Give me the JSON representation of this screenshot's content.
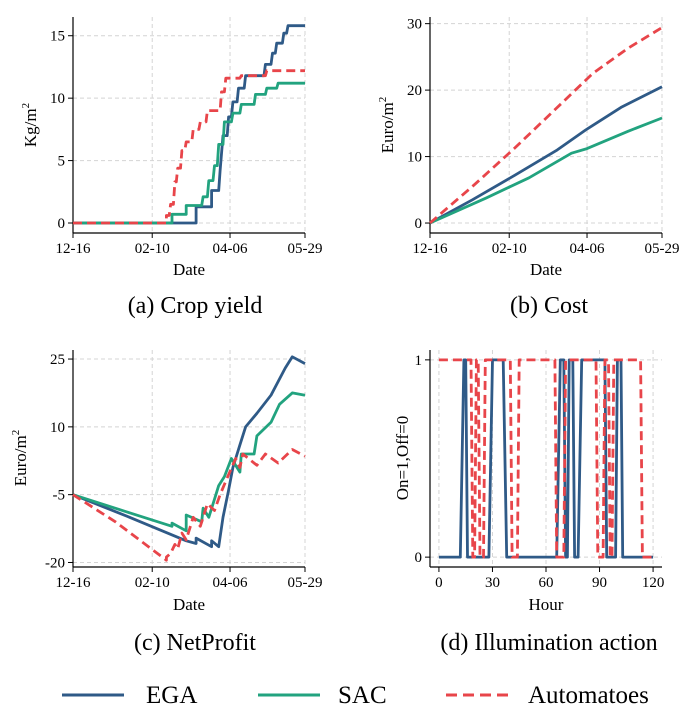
{
  "colors": {
    "EGA": "#2f5a87",
    "SAC": "#22a37f",
    "Automatoes": "#e8454a",
    "grid": "#d4d4d4"
  },
  "legend": [
    {
      "name": "EGA",
      "color": "#2f5a87",
      "dashed": false
    },
    {
      "name": "SAC",
      "color": "#22a37f",
      "dashed": false
    },
    {
      "name": "Automatoes",
      "color": "#e8454a",
      "dashed": true
    }
  ],
  "chart_data": [
    {
      "type": "line",
      "caption": "(a) Crop yield",
      "xlabel": "Date",
      "ylabel": "Kg/m",
      "ylabel_sup": "2",
      "x_tick_labels": [
        "12-16",
        "02-10",
        "04-06",
        "05-29"
      ],
      "x_tick_values": [
        0,
        56,
        111,
        164
      ],
      "xlim": [
        0,
        164
      ],
      "ylim": [
        -0.8,
        16.5
      ],
      "y_ticks": [
        0,
        5,
        10,
        15
      ],
      "series": [
        {
          "name": "EGA",
          "points": [
            [
              0,
              0
            ],
            [
              87,
              0
            ],
            [
              87,
              1.3
            ],
            [
              98,
              1.3
            ],
            [
              98,
              2.6
            ],
            [
              103,
              2.6
            ],
            [
              104,
              4.2
            ],
            [
              106,
              7.0
            ],
            [
              109,
              7.0
            ],
            [
              110,
              8.5
            ],
            [
              112,
              8.5
            ],
            [
              113,
              9.7
            ],
            [
              116,
              9.7
            ],
            [
              117,
              10.8
            ],
            [
              121,
              10.8
            ],
            [
              122,
              11.8
            ],
            [
              135,
              11.8
            ],
            [
              136,
              12.7
            ],
            [
              140,
              12.7
            ],
            [
              141,
              13.6
            ],
            [
              143,
              13.6
            ],
            [
              144,
              14.4
            ],
            [
              148,
              14.4
            ],
            [
              149,
              15.2
            ],
            [
              151,
              15.2
            ],
            [
              152,
              15.8
            ],
            [
              164,
              15.8
            ]
          ]
        },
        {
          "name": "SAC",
          "points": [
            [
              0,
              0
            ],
            [
              70,
              0
            ],
            [
              70,
              0.7
            ],
            [
              80,
              0.7
            ],
            [
              80,
              1.4
            ],
            [
              91,
              1.4
            ],
            [
              92,
              2.1
            ],
            [
              95,
              2.1
            ],
            [
              96,
              3.4
            ],
            [
              99,
              3.4
            ],
            [
              100,
              4.6
            ],
            [
              102,
              4.6
            ],
            [
              103,
              6.3
            ],
            [
              106,
              6.3
            ],
            [
              107,
              8.1
            ],
            [
              112,
              8.1
            ],
            [
              113,
              8.8
            ],
            [
              118,
              8.8
            ],
            [
              119,
              9.5
            ],
            [
              128,
              9.5
            ],
            [
              129,
              10.3
            ],
            [
              136,
              10.3
            ],
            [
              137,
              10.8
            ],
            [
              144,
              10.8
            ],
            [
              145,
              11.2
            ],
            [
              164,
              11.2
            ]
          ]
        },
        {
          "name": "Automatoes",
          "points": [
            [
              0,
              0
            ],
            [
              66,
              0
            ],
            [
              66,
              0.6
            ],
            [
              68,
              0.6
            ],
            [
              69,
              1.5
            ],
            [
              71,
              1.5
            ],
            [
              72,
              3.3
            ],
            [
              73,
              3.3
            ],
            [
              74,
              4.4
            ],
            [
              76,
              4.4
            ],
            [
              77,
              5.8
            ],
            [
              79,
              5.8
            ],
            [
              80,
              6.5
            ],
            [
              84,
              6.5
            ],
            [
              85,
              7.5
            ],
            [
              89,
              7.5
            ],
            [
              90,
              8.1
            ],
            [
              94,
              8.1
            ],
            [
              95,
              9.0
            ],
            [
              104,
              9.0
            ],
            [
              105,
              10.5
            ],
            [
              107,
              10.5
            ],
            [
              108,
              11.6
            ],
            [
              118,
              11.6
            ],
            [
              119,
              11.8
            ],
            [
              136,
              11.8
            ],
            [
              137,
              12.2
            ],
            [
              164,
              12.2
            ]
          ]
        }
      ]
    },
    {
      "type": "line",
      "caption": "(b) Cost",
      "xlabel": "Date",
      "ylabel": "Euro/m",
      "ylabel_sup": "2",
      "x_tick_labels": [
        "12-16",
        "02-10",
        "04-06",
        "05-29"
      ],
      "x_tick_values": [
        0,
        56,
        111,
        164
      ],
      "xlim": [
        0,
        164
      ],
      "ylim": [
        -1.5,
        31
      ],
      "y_ticks": [
        0,
        10,
        20,
        30
      ],
      "series": [
        {
          "name": "EGA",
          "points": [
            [
              0,
              0
            ],
            [
              30,
              3.5
            ],
            [
              60,
              7.2
            ],
            [
              90,
              11.0
            ],
            [
              110,
              14.0
            ],
            [
              135,
              17.4
            ],
            [
              164,
              20.5
            ]
          ]
        },
        {
          "name": "SAC",
          "points": [
            [
              0,
              0
            ],
            [
              40,
              3.8
            ],
            [
              70,
              6.8
            ],
            [
              100,
              10.5
            ],
            [
              111,
              11.2
            ],
            [
              140,
              13.8
            ],
            [
              164,
              15.8
            ]
          ]
        },
        {
          "name": "Automatoes",
          "points": [
            [
              0,
              0
            ],
            [
              30,
              5.5
            ],
            [
              60,
              11.3
            ],
            [
              90,
              17.4
            ],
            [
              115,
              22.5
            ],
            [
              140,
              26.3
            ],
            [
              164,
              29.4
            ]
          ]
        }
      ]
    },
    {
      "type": "line",
      "caption": "(c) NetProfit",
      "xlabel": "Date",
      "ylabel": "Euro/m",
      "ylabel_sup": "2",
      "x_tick_labels": [
        "12-16",
        "02-10",
        "04-06",
        "05-29"
      ],
      "x_tick_values": [
        0,
        56,
        111,
        164
      ],
      "xlim": [
        0,
        164
      ],
      "ylim": [
        -21,
        27
      ],
      "y_ticks": [
        -20,
        -5,
        10,
        25
      ],
      "series": [
        {
          "name": "EGA",
          "points": [
            [
              0,
              -5
            ],
            [
              40,
              -10
            ],
            [
              80,
              -15.2
            ],
            [
              87,
              -15.8
            ],
            [
              87,
              -14.6
            ],
            [
              98,
              -16.5
            ],
            [
              98,
              -15.2
            ],
            [
              103,
              -16.5
            ],
            [
              106,
              -10
            ],
            [
              110,
              -4
            ],
            [
              113,
              1
            ],
            [
              118,
              6
            ],
            [
              122,
              10
            ],
            [
              130,
              13
            ],
            [
              140,
              17
            ],
            [
              150,
              23
            ],
            [
              155,
              25.5
            ],
            [
              164,
              24
            ]
          ]
        },
        {
          "name": "SAC",
          "points": [
            [
              0,
              -5
            ],
            [
              40,
              -9
            ],
            [
              70,
              -12
            ],
            [
              70,
              -11.3
            ],
            [
              80,
              -13
            ],
            [
              80,
              -9.5
            ],
            [
              91,
              -11
            ],
            [
              92,
              -8
            ],
            [
              96,
              -10
            ],
            [
              100,
              -6
            ],
            [
              103,
              -3
            ],
            [
              107,
              -1
            ],
            [
              112,
              3
            ],
            [
              118,
              0
            ],
            [
              119,
              4
            ],
            [
              128,
              4
            ],
            [
              130,
              8
            ],
            [
              140,
              11
            ],
            [
              146,
              15
            ],
            [
              155,
              17.5
            ],
            [
              164,
              17
            ]
          ]
        },
        {
          "name": "Automatoes",
          "points": [
            [
              0,
              -5
            ],
            [
              30,
              -11
            ],
            [
              66,
              -19.5
            ],
            [
              66,
              -18.8
            ],
            [
              69,
              -18
            ],
            [
              72,
              -16
            ],
            [
              74,
              -17
            ],
            [
              77,
              -13.5
            ],
            [
              80,
              -15
            ],
            [
              85,
              -10
            ],
            [
              90,
              -12
            ],
            [
              95,
              -7
            ],
            [
              100,
              -8.5
            ],
            [
              104,
              -5
            ],
            [
              108,
              -2
            ],
            [
              115,
              3
            ],
            [
              118,
              1
            ],
            [
              120,
              4
            ],
            [
              130,
              1.5
            ],
            [
              136,
              4
            ],
            [
              145,
              2
            ],
            [
              155,
              5
            ],
            [
              164,
              3.5
            ]
          ]
        }
      ]
    },
    {
      "type": "line",
      "caption": "(d) Illumination action",
      "xlabel": "Hour",
      "ylabel": "On=1,Off=0",
      "x_tick_labels": [
        "0",
        "30",
        "60",
        "90",
        "120"
      ],
      "x_tick_values": [
        0,
        30,
        60,
        90,
        120
      ],
      "xlim": [
        -5,
        125
      ],
      "ylim": [
        -0.05,
        1.05
      ],
      "y_ticks": [
        0,
        1
      ],
      "series": [
        {
          "name": "EGA",
          "points": [
            [
              0,
              0
            ],
            [
              12,
              0
            ],
            [
              14,
              1
            ],
            [
              15,
              1
            ],
            [
              16,
              0
            ],
            [
              28,
              0
            ],
            [
              30,
              1
            ],
            [
              36,
              1
            ],
            [
              38,
              0
            ],
            [
              66,
              0
            ],
            [
              68,
              1
            ],
            [
              70,
              1
            ],
            [
              71,
              0
            ],
            [
              72,
              0
            ],
            [
              73,
              1
            ],
            [
              75,
              1
            ],
            [
              76,
              0
            ],
            [
              78,
              0
            ],
            [
              80,
              1
            ],
            [
              93,
              1
            ],
            [
              94,
              0
            ],
            [
              99,
              0
            ],
            [
              100,
              1
            ],
            [
              102,
              1
            ],
            [
              103,
              0
            ],
            [
              120,
              0
            ]
          ]
        },
        {
          "name": "Automatoes",
          "points": [
            [
              0,
              1
            ],
            [
              18,
              1
            ],
            [
              19,
              0
            ],
            [
              20,
              0
            ],
            [
              21,
              1
            ],
            [
              22,
              1
            ],
            [
              23,
              0
            ],
            [
              25,
              0
            ],
            [
              26,
              1
            ],
            [
              40,
              1
            ],
            [
              41,
              0
            ],
            [
              44,
              0
            ],
            [
              45,
              1
            ],
            [
              65,
              1
            ],
            [
              66,
              0
            ],
            [
              70,
              0
            ],
            [
              71,
              1
            ],
            [
              88,
              1
            ],
            [
              89,
              0
            ],
            [
              92,
              0
            ],
            [
              93,
              1
            ],
            [
              95,
              1
            ],
            [
              96,
              0
            ],
            [
              97,
              0
            ],
            [
              98,
              1
            ],
            [
              113,
              1
            ],
            [
              114,
              0
            ],
            [
              120,
              0
            ]
          ]
        }
      ]
    }
  ]
}
